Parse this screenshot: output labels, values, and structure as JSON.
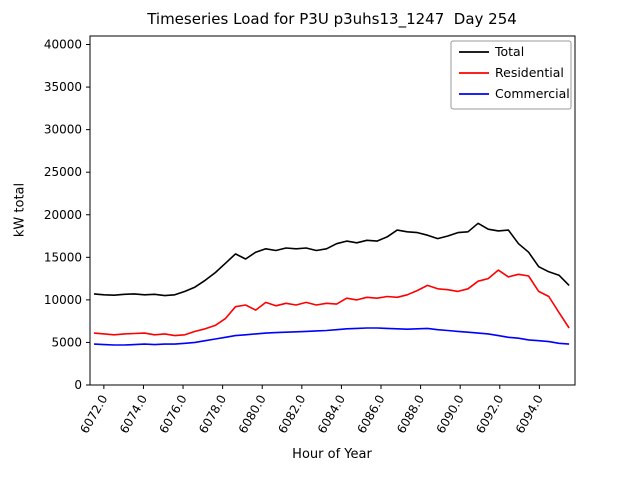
{
  "chart_data": {
    "type": "line",
    "title": "Timeseries Load for P3U p3uhs13_1247  Day 254",
    "xlabel": "Hour of Year",
    "ylabel": "kW total",
    "xlim": [
      6071.3,
      6095.8
    ],
    "ylim": [
      0,
      41000
    ],
    "x_ticks": [
      6072,
      6074,
      6076,
      6078,
      6080,
      6082,
      6084,
      6086,
      6088,
      6090,
      6092,
      6094
    ],
    "x_tick_labels": [
      "6072.0",
      "6074.0",
      "6076.0",
      "6078.0",
      "6080.0",
      "6082.0",
      "6084.0",
      "6086.0",
      "6088.0",
      "6090.0",
      "6092.0",
      "6094.0"
    ],
    "y_ticks": [
      0,
      5000,
      10000,
      15000,
      20000,
      25000,
      30000,
      35000,
      40000
    ],
    "x_start": 6071.5,
    "x_end": 6095.5,
    "grid": false,
    "legend_position": "upper right",
    "series": [
      {
        "name": "Total",
        "color": "#000000",
        "values": [
          10700,
          10600,
          10550,
          10650,
          10700,
          10600,
          10650,
          10500,
          10600,
          11000,
          11500,
          12300,
          13200,
          14300,
          15400,
          14800,
          15600,
          16000,
          15800,
          16100,
          16000,
          16100,
          15800,
          16000,
          16600,
          16900,
          16700,
          17000,
          16900,
          17400,
          18200,
          18000,
          17900,
          17600,
          17200,
          17500,
          17900,
          18000,
          19000,
          18300,
          18100,
          18200,
          16600,
          15600,
          13900,
          13300,
          12900,
          11700
        ]
      },
      {
        "name": "Residential",
        "color": "#ff0000",
        "values": [
          6100,
          6000,
          5900,
          6000,
          6050,
          6100,
          5900,
          6000,
          5800,
          5900,
          6300,
          6600,
          7000,
          7800,
          9200,
          9400,
          8800,
          9700,
          9300,
          9600,
          9400,
          9700,
          9400,
          9600,
          9500,
          10200,
          10000,
          10300,
          10200,
          10400,
          10300,
          10600,
          11100,
          11700,
          11300,
          11200,
          11000,
          11300,
          12200,
          12500,
          13500,
          12700,
          13000,
          12800,
          11000,
          10400,
          8500,
          6700
        ]
      },
      {
        "name": "Commercial",
        "color": "#0000ff",
        "values": [
          4800,
          4750,
          4700,
          4700,
          4750,
          4800,
          4750,
          4800,
          4800,
          4900,
          5000,
          5200,
          5400,
          5600,
          5800,
          5900,
          6000,
          6100,
          6150,
          6200,
          6250,
          6300,
          6350,
          6400,
          6500,
          6600,
          6650,
          6700,
          6700,
          6650,
          6600,
          6550,
          6600,
          6650,
          6500,
          6400,
          6300,
          6200,
          6100,
          6000,
          5800,
          5600,
          5500,
          5300,
          5200,
          5100,
          4900,
          4800
        ]
      }
    ]
  }
}
